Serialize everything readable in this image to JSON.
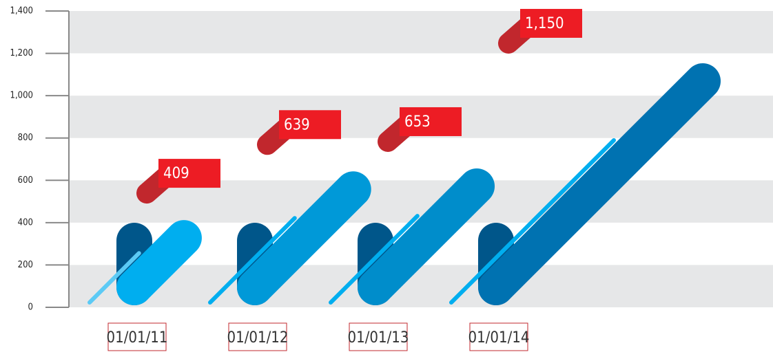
{
  "chart_data": {
    "type": "bar",
    "categories": [
      "01/01/11",
      "01/01/12",
      "01/01/13",
      "01/01/14"
    ],
    "values": [
      409,
      639,
      653,
      1150
    ],
    "value_labels": [
      "409",
      "639",
      "653",
      "1,150"
    ],
    "colors": [
      "#00aeef",
      "#0099d8",
      "#008dcb",
      "#0072b1"
    ],
    "label_color": "#ed1c24",
    "ylim": [
      0,
      1400
    ],
    "yticks": [
      0,
      200,
      400,
      600,
      800,
      {
        "value": 1000,
        "label": "1,000"
      },
      {
        "value": 1200,
        "label": "1,200"
      },
      {
        "value": 1400,
        "label": "1,400"
      }
    ],
    "grid": true
  }
}
